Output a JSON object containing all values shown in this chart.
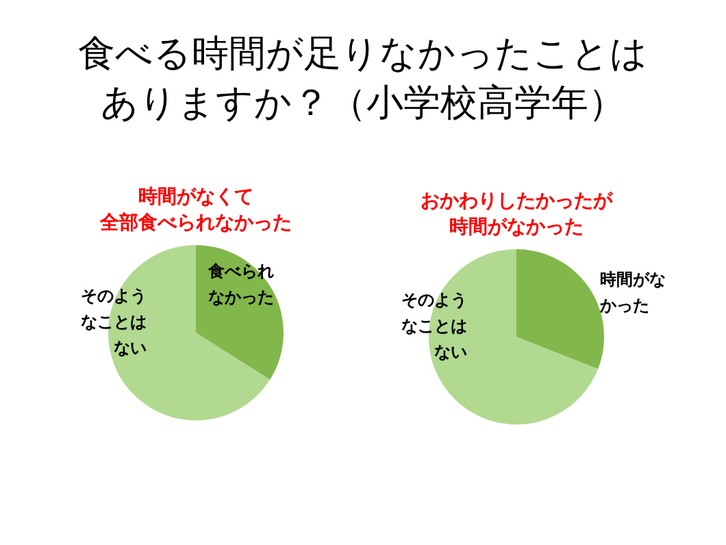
{
  "chart_data": [
    {
      "type": "pie",
      "title": "食べる時間が足りなかったことはありますか？（小学校高学年）",
      "subtitle": "時間がなくて全部食べられなかった",
      "categories": [
        "食べられなかった",
        "そのようなことはない"
      ],
      "values": [
        34,
        66
      ],
      "colors": [
        "#82b74b",
        "#b1d98f"
      ],
      "legend": false
    },
    {
      "type": "pie",
      "subtitle": "おかわりしたかったが時間がなかった",
      "categories": [
        "時間がなかった",
        "そのようなことはない"
      ],
      "values": [
        31,
        69
      ],
      "colors": [
        "#82b74b",
        "#b1d98f"
      ],
      "legend": false
    }
  ]
}
